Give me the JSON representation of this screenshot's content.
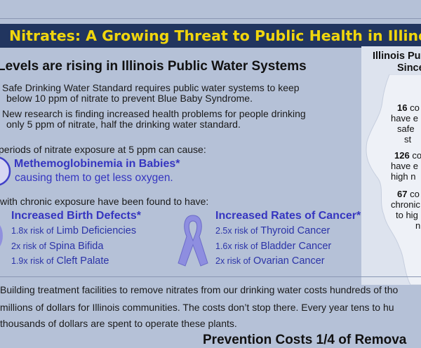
{
  "banner": {
    "title": "Nitrates: A Growing Threat to Public Health in Illinois"
  },
  "main": {
    "heading": "Levels are rising in Illinois Public Water Systems",
    "paragraph1_line1": "Safe Drinking Water Standard requires public water systems to keep",
    "paragraph1_line2": "below 10 ppm of nitrate to prevent Blue Baby Syndrome.",
    "paragraph2_line1": "New research is finding increased health problems for people drinking",
    "paragraph2_line2": "only 5 ppm of nitrate, half the drinking water standard.",
    "exposure_intro": "periods of nitrate exposure at 5 ppm can cause:",
    "metheme_title": "Methemoglobinemia in Babies*",
    "metheme_desc": "causing them to get less oxygen.",
    "chronic_intro": "with chronic exposure have been found to have:",
    "birth_defects": {
      "title": "Increased Birth Defects*",
      "risks": [
        {
          "mult": "1.8x risk of",
          "name": "Limb Deficiencies"
        },
        {
          "mult": "2x risk of",
          "name": "Spina Bifida"
        },
        {
          "mult": "1.9x risk of",
          "name": "Cleft Palate"
        }
      ]
    },
    "cancer": {
      "title": "Increased Rates of Cancer*",
      "risks": [
        {
          "mult": "2.5x risk of",
          "name": "Thyroid Cancer"
        },
        {
          "mult": "1.6x risk of",
          "name": "Bladder Cancer"
        },
        {
          "mult": "2x risk of",
          "name": "Ovarian Cancer"
        }
      ]
    },
    "costs_line1": "Building treatment facilities to remove nitrates from our drinking water costs hundreds of tho",
    "costs_line2": "millions of dollars for Illinois communities.  The costs don’t stop there.  Every year tens to hu",
    "costs_line3": "thousands of dollars are spent to operate these plants."
  },
  "sidebar": {
    "title_line1": "Illinois Pu",
    "title_line2": "Since",
    "stat1": {
      "num": "16",
      "l1": "co",
      "l2": "have e",
      "l3": "safe",
      "l4": "st"
    },
    "stat2": {
      "num": "126",
      "l1": "co",
      "l2": "have e",
      "l3": "high n"
    },
    "stat3": {
      "num": "67",
      "l1": "co",
      "l2": "chronic",
      "l3": "to hig",
      "l4": "n"
    }
  },
  "footer": {
    "title": "Prevention Costs 1/4 of Remova"
  },
  "colors": {
    "banner_bg": "#21355f",
    "banner_text": "#f1d60d",
    "accent_blue": "#3535c0",
    "ribbon": "#8e8ee0"
  }
}
